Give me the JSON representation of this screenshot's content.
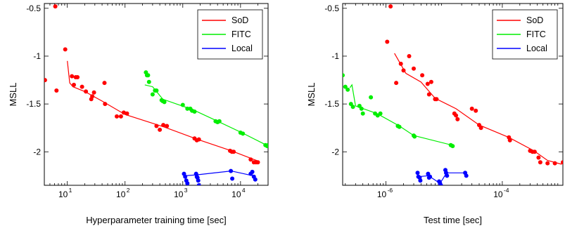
{
  "chart_data": [
    {
      "type": "scatter",
      "title": "",
      "xlabel": "Hyperparameter training time [sec]",
      "ylabel": "MSLL",
      "xscale": "log",
      "xlim": [
        4,
        30000
      ],
      "ylim": [
        -2.35,
        -0.45
      ],
      "xticks": [
        {
          "value": 10,
          "base": "10",
          "exp": "1"
        },
        {
          "value": 100,
          "base": "10",
          "exp": "2"
        },
        {
          "value": 1000,
          "base": "10",
          "exp": "3"
        },
        {
          "value": 10000,
          "base": "10",
          "exp": "4"
        }
      ],
      "yticks": [
        {
          "value": -0.5,
          "label": "-0.5"
        },
        {
          "value": -1,
          "label": "-1"
        },
        {
          "value": -1.5,
          "label": "-1.5"
        },
        {
          "value": -2,
          "label": "-2"
        }
      ],
      "legend": {
        "position": "top-right",
        "entries": [
          "SoD",
          "FITC",
          "Local"
        ]
      },
      "grid": false,
      "series": [
        {
          "name": "SoD",
          "color": "#ff0000",
          "points": [
            [
              4.1,
              -1.25
            ],
            [
              6.2,
              -0.48
            ],
            [
              6.5,
              -1.36
            ],
            [
              9.2,
              -0.93
            ],
            [
              12,
              -1.21
            ],
            [
              13,
              -1.3
            ],
            [
              14,
              -1.22
            ],
            [
              15,
              -1.22
            ],
            [
              18,
              -1.32
            ],
            [
              21,
              -1.37
            ],
            [
              26,
              -1.45
            ],
            [
              27,
              -1.42
            ],
            [
              29,
              -1.38
            ],
            [
              44,
              -1.28
            ],
            [
              45,
              -1.5
            ],
            [
              72,
              -1.63
            ],
            [
              85,
              -1.63
            ],
            [
              95,
              -1.59
            ],
            [
              108,
              -1.6
            ],
            [
              350,
              -1.73
            ],
            [
              400,
              -1.77
            ],
            [
              460,
              -1.72
            ],
            [
              530,
              -1.73
            ],
            [
              1600,
              -1.86
            ],
            [
              1750,
              -1.88
            ],
            [
              1900,
              -1.87
            ],
            [
              6600,
              -1.99
            ],
            [
              7100,
              -2.0
            ],
            [
              7600,
              -2.0
            ],
            [
              15000,
              -2.08
            ],
            [
              17000,
              -2.11
            ],
            [
              18500,
              -2.11
            ],
            [
              20000,
              -2.11
            ]
          ],
          "line": [
            [
              10,
              -1.05
            ],
            [
              11,
              -1.28
            ],
            [
              12.5,
              -1.32
            ],
            [
              20,
              -1.37
            ],
            [
              40,
              -1.47
            ],
            [
              100,
              -1.61
            ],
            [
              470,
              -1.74
            ],
            [
              1800,
              -1.87
            ],
            [
              7000,
              -1.99
            ],
            [
              17000,
              -2.08
            ],
            [
              21000,
              -2.1
            ]
          ]
        },
        {
          "name": "FITC",
          "color": "#00ee00",
          "points": [
            [
              230,
              -1.17
            ],
            [
              240,
              -1.2
            ],
            [
              250,
              -1.2
            ],
            [
              260,
              -1.27
            ],
            [
              300,
              -1.4
            ],
            [
              330,
              -1.36
            ],
            [
              350,
              -1.36
            ],
            [
              430,
              -1.46
            ],
            [
              450,
              -1.47
            ],
            [
              480,
              -1.48
            ],
            [
              1000,
              -1.51
            ],
            [
              1200,
              -1.55
            ],
            [
              1350,
              -1.55
            ],
            [
              1450,
              -1.57
            ],
            [
              1600,
              -1.58
            ],
            [
              3700,
              -1.68
            ],
            [
              4000,
              -1.69
            ],
            [
              4300,
              -1.68
            ],
            [
              10000,
              -1.8
            ],
            [
              11000,
              -1.81
            ],
            [
              27000,
              -1.93
            ],
            [
              29000,
              -1.94
            ],
            [
              30000,
              -1.93
            ]
          ],
          "line": [
            [
              220,
              -1.3
            ],
            [
              300,
              -1.32
            ],
            [
              450,
              -1.45
            ],
            [
              1500,
              -1.56
            ],
            [
              4000,
              -1.68
            ],
            [
              10500,
              -1.8
            ],
            [
              28000,
              -1.93
            ]
          ]
        },
        {
          "name": "Local",
          "color": "#0000ff",
          "points": [
            [
              1050,
              -2.23
            ],
            [
              1100,
              -2.26
            ],
            [
              1150,
              -2.3
            ],
            [
              1200,
              -2.33
            ],
            [
              1700,
              -2.23
            ],
            [
              1750,
              -2.26
            ],
            [
              1800,
              -2.27
            ],
            [
              1850,
              -2.3
            ],
            [
              1900,
              -2.35
            ],
            [
              6800,
              -2.2
            ],
            [
              7200,
              -2.28
            ],
            [
              15000,
              -2.23
            ],
            [
              16000,
              -2.21
            ],
            [
              17000,
              -2.26
            ],
            [
              18000,
              -2.29
            ]
          ],
          "line": [
            [
              1100,
              -2.25
            ],
            [
              1800,
              -2.24
            ],
            [
              6900,
              -2.2
            ],
            [
              16500,
              -2.25
            ]
          ]
        }
      ]
    },
    {
      "type": "scatter",
      "title": "",
      "xlabel": "Test time [sec]",
      "ylabel": "MSLL",
      "xscale": "log",
      "xlim": [
        1.8e-07,
        0.0011
      ],
      "ylim": [
        -2.35,
        -0.45
      ],
      "xticks": [
        {
          "value": 1e-06,
          "base": "10",
          "exp": "-6"
        },
        {
          "value": 0.0001,
          "base": "10",
          "exp": "-4"
        }
      ],
      "yticks": [
        {
          "value": -0.5,
          "label": "-0.5"
        },
        {
          "value": -1,
          "label": "-1"
        },
        {
          "value": -1.5,
          "label": "-1.5"
        },
        {
          "value": -2,
          "label": "-2"
        }
      ],
      "legend": {
        "position": "top-right",
        "entries": [
          "SoD",
          "FITC",
          "Local"
        ]
      },
      "grid": false,
      "series": [
        {
          "name": "SoD",
          "color": "#ff0000",
          "points": [
            [
              1.05e-06,
              -0.85
            ],
            [
              1.2e-06,
              -0.48
            ],
            [
              1.5e-06,
              -1.28
            ],
            [
              1.8e-06,
              -1.08
            ],
            [
              2e-06,
              -1.15
            ],
            [
              2.5e-06,
              -1.0
            ],
            [
              3e-06,
              -1.13
            ],
            [
              4.2e-06,
              -1.2
            ],
            [
              5.2e-06,
              -1.29
            ],
            [
              5.5e-06,
              -1.4
            ],
            [
              6e-06,
              -1.27
            ],
            [
              7e-06,
              -1.45
            ],
            [
              7.4e-06,
              -1.45
            ],
            [
              1.5e-05,
              -1.6
            ],
            [
              1.6e-05,
              -1.62
            ],
            [
              1.7e-05,
              -1.66
            ],
            [
              3e-05,
              -1.55
            ],
            [
              3.5e-05,
              -1.57
            ],
            [
              4e-05,
              -1.72
            ],
            [
              4.3e-05,
              -1.75
            ],
            [
              0.00013,
              -1.85
            ],
            [
              0.000135,
              -1.88
            ],
            [
              0.0003,
              -1.99
            ],
            [
              0.00033,
              -2.0
            ],
            [
              0.00036,
              -2.0
            ],
            [
              0.00042,
              -2.06
            ],
            [
              0.00045,
              -2.11
            ],
            [
              0.0006,
              -2.12
            ],
            [
              0.0008,
              -2.12
            ],
            [
              0.0011,
              -2.11
            ]
          ],
          "line": [
            [
              1.4e-06,
              -0.97
            ],
            [
              2.2e-06,
              -1.18
            ],
            [
              4e-06,
              -1.27
            ],
            [
              7e-06,
              -1.44
            ],
            [
              1.6e-05,
              -1.55
            ],
            [
              4e-05,
              -1.72
            ],
            [
              0.00013,
              -1.85
            ],
            [
              0.00035,
              -1.99
            ],
            [
              0.0006,
              -2.09
            ],
            [
              0.00105,
              -2.13
            ]
          ]
        },
        {
          "name": "FITC",
          "color": "#00ee00",
          "points": [
            [
              1.8e-07,
              -1.2
            ],
            [
              2e-07,
              -1.32
            ],
            [
              2.2e-07,
              -1.35
            ],
            [
              2.5e-07,
              -1.5
            ],
            [
              2.7e-07,
              -1.53
            ],
            [
              3.5e-07,
              -1.52
            ],
            [
              3.8e-07,
              -1.55
            ],
            [
              4e-07,
              -1.6
            ],
            [
              5.5e-07,
              -1.43
            ],
            [
              6.5e-07,
              -1.6
            ],
            [
              7.2e-07,
              -1.62
            ],
            [
              8e-07,
              -1.6
            ],
            [
              1.6e-06,
              -1.73
            ],
            [
              1.7e-06,
              -1.74
            ],
            [
              3e-06,
              -1.83
            ],
            [
              3.1e-06,
              -1.84
            ],
            [
              1.3e-05,
              -1.93
            ],
            [
              1.4e-05,
              -1.94
            ]
          ],
          "line": [
            [
              2.4e-07,
              -1.33
            ],
            [
              2.6e-07,
              -1.3
            ],
            [
              3e-07,
              -1.52
            ],
            [
              7e-07,
              -1.6
            ],
            [
              1.7e-06,
              -1.73
            ],
            [
              3e-06,
              -1.83
            ],
            [
              1.35e-05,
              -1.93
            ]
          ]
        },
        {
          "name": "Local",
          "color": "#0000ff",
          "points": [
            [
              3.5e-06,
              -2.22
            ],
            [
              3.6e-06,
              -2.26
            ],
            [
              3.8e-06,
              -2.27
            ],
            [
              3.9e-06,
              -2.3
            ],
            [
              5.3e-06,
              -2.23
            ],
            [
              5.5e-06,
              -2.27
            ],
            [
              5.7e-06,
              -2.26
            ],
            [
              8.2e-06,
              -2.31
            ],
            [
              8.5e-06,
              -2.33
            ],
            [
              8.8e-06,
              -2.35
            ],
            [
              1.05e-05,
              -2.19
            ],
            [
              1.08e-05,
              -2.22
            ],
            [
              1.12e-05,
              -2.25
            ],
            [
              2.3e-05,
              -2.22
            ],
            [
              2.4e-05,
              -2.25
            ]
          ],
          "line": [
            [
              3.6e-06,
              -2.26
            ],
            [
              5.4e-06,
              -2.25
            ],
            [
              8.5e-06,
              -2.33
            ],
            [
              1.1e-05,
              -2.22
            ],
            [
              2.35e-05,
              -2.22
            ]
          ]
        }
      ]
    }
  ]
}
